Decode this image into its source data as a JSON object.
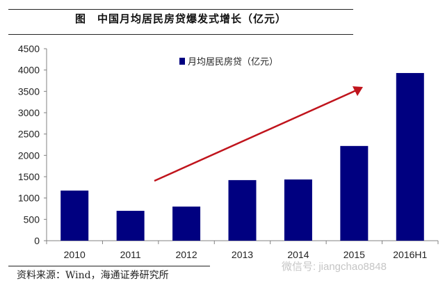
{
  "figure": {
    "title": "图　中国月均居民房贷爆发式增长（亿元）",
    "source": "资料来源：Wind，海通证券研究所",
    "watermark": "微信号: jiangchao8848"
  },
  "colors": {
    "bar": "#000080",
    "arrow": "#C0141C",
    "axis": "#808080"
  },
  "chart_data": {
    "type": "bar",
    "title": "中国月均居民房贷爆发式增长（亿元）",
    "xlabel": "",
    "ylabel": "",
    "categories": [
      "2010",
      "2011",
      "2012",
      "2013",
      "2014",
      "2015",
      "2016H1"
    ],
    "series": [
      {
        "name": "月均居民房贷（亿元）",
        "values": [
          1175,
          700,
          800,
          1420,
          1435,
          2220,
          3930
        ]
      }
    ],
    "ylim": [
      0,
      4500
    ],
    "yticks": [
      0,
      500,
      1000,
      1500,
      2000,
      2500,
      3000,
      3500,
      4000,
      4500
    ],
    "legend_position": "top-center",
    "grid": false,
    "annotations": [
      {
        "type": "arrow",
        "description": "red upward trend arrow from 2012 to 2015"
      }
    ]
  }
}
